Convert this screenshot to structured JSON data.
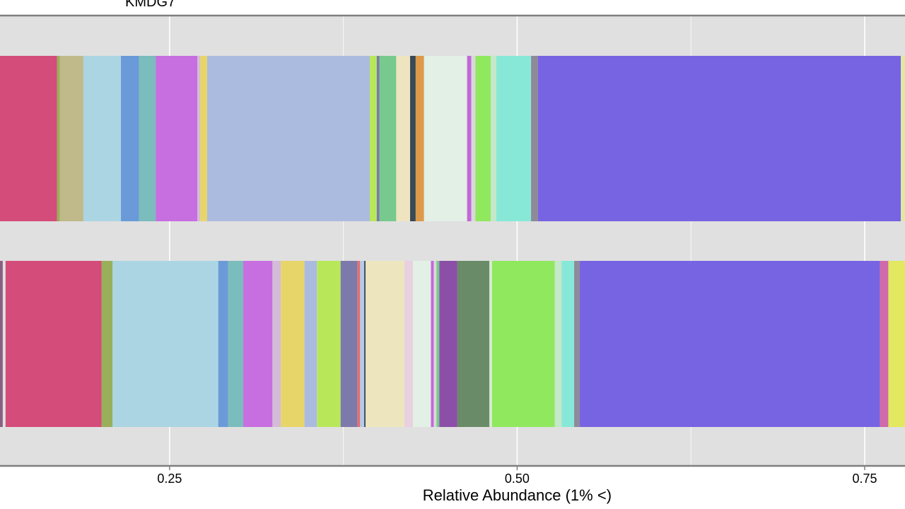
{
  "chart_data": {
    "type": "bar",
    "orientation": "horizontal",
    "stacked": true,
    "facet_label": "KMDG7",
    "xlabel": "Relative Abundance (1% <)",
    "ylabel": "",
    "x_ticks": [
      0.25,
      0.5,
      0.75
    ],
    "x_tick_labels": [
      "0.25",
      "0.50",
      "0.75"
    ],
    "xlim": [
      0.128,
      0.779
    ],
    "grid": true,
    "bars": [
      {
        "segments": [
          {
            "start": 0.125,
            "end": 0.169,
            "color": "#D44C7A"
          },
          {
            "start": 0.169,
            "end": 0.171,
            "color": "#9AAF5A"
          },
          {
            "start": 0.171,
            "end": 0.188,
            "color": "#C0BA8A"
          },
          {
            "start": 0.188,
            "end": 0.215,
            "color": "#ABD5E3"
          },
          {
            "start": 0.215,
            "end": 0.228,
            "color": "#6A9BD8"
          },
          {
            "start": 0.228,
            "end": 0.24,
            "color": "#7BBCBC"
          },
          {
            "start": 0.24,
            "end": 0.27,
            "color": "#C76EE0"
          },
          {
            "start": 0.27,
            "end": 0.272,
            "color": "#D4BCD8"
          },
          {
            "start": 0.272,
            "end": 0.277,
            "color": "#E8D56A"
          },
          {
            "start": 0.277,
            "end": 0.394,
            "color": "#ABBBE0"
          },
          {
            "start": 0.394,
            "end": 0.399,
            "color": "#B8E85A"
          },
          {
            "start": 0.399,
            "end": 0.401,
            "color": "#7B7AAA"
          },
          {
            "start": 0.401,
            "end": 0.413,
            "color": "#78C98D"
          },
          {
            "start": 0.413,
            "end": 0.423,
            "color": "#EEE5C0"
          },
          {
            "start": 0.423,
            "end": 0.427,
            "color": "#3A4A55"
          },
          {
            "start": 0.427,
            "end": 0.433,
            "color": "#DD9A4A"
          },
          {
            "start": 0.433,
            "end": 0.464,
            "color": "#E2F0E6"
          },
          {
            "start": 0.464,
            "end": 0.467,
            "color": "#C368D8"
          },
          {
            "start": 0.467,
            "end": 0.47,
            "color": "#D8D8D8"
          },
          {
            "start": 0.47,
            "end": 0.481,
            "color": "#90E85F"
          },
          {
            "start": 0.481,
            "end": 0.485,
            "color": "#C5E8C8"
          },
          {
            "start": 0.485,
            "end": 0.51,
            "color": "#88E8D8"
          },
          {
            "start": 0.51,
            "end": 0.515,
            "color": "#8E8A9A"
          },
          {
            "start": 0.515,
            "end": 0.776,
            "color": "#7764E2"
          },
          {
            "start": 0.776,
            "end": 0.78,
            "color": "#E2E8A0"
          }
        ]
      },
      {
        "segments": [
          {
            "start": 0.125,
            "end": 0.13,
            "color": "#8A6080"
          },
          {
            "start": 0.13,
            "end": 0.132,
            "color": "#E0E0E0"
          },
          {
            "start": 0.132,
            "end": 0.201,
            "color": "#D44C7A"
          },
          {
            "start": 0.201,
            "end": 0.209,
            "color": "#9AAF5A"
          },
          {
            "start": 0.209,
            "end": 0.285,
            "color": "#ABD5E3"
          },
          {
            "start": 0.285,
            "end": 0.292,
            "color": "#6A9BD8"
          },
          {
            "start": 0.292,
            "end": 0.303,
            "color": "#7BBCBC"
          },
          {
            "start": 0.303,
            "end": 0.324,
            "color": "#C76EE0"
          },
          {
            "start": 0.324,
            "end": 0.33,
            "color": "#D4BCD8"
          },
          {
            "start": 0.33,
            "end": 0.347,
            "color": "#E8D56A"
          },
          {
            "start": 0.347,
            "end": 0.356,
            "color": "#ABBBE0"
          },
          {
            "start": 0.356,
            "end": 0.373,
            "color": "#B8E85A"
          },
          {
            "start": 0.373,
            "end": 0.385,
            "color": "#7B7AAA"
          },
          {
            "start": 0.385,
            "end": 0.387,
            "color": "#E07070"
          },
          {
            "start": 0.387,
            "end": 0.39,
            "color": "#B8C8E8"
          },
          {
            "start": 0.39,
            "end": 0.391,
            "color": "#3A4A55"
          },
          {
            "start": 0.391,
            "end": 0.419,
            "color": "#EDE5BE"
          },
          {
            "start": 0.419,
            "end": 0.425,
            "color": "#E8D0E0"
          },
          {
            "start": 0.425,
            "end": 0.438,
            "color": "#E2F0E6"
          },
          {
            "start": 0.438,
            "end": 0.44,
            "color": "#C368D8"
          },
          {
            "start": 0.44,
            "end": 0.442,
            "color": "#D8D8D8"
          },
          {
            "start": 0.442,
            "end": 0.444,
            "color": "#78C98D"
          },
          {
            "start": 0.444,
            "end": 0.457,
            "color": "#8C4FA8"
          },
          {
            "start": 0.457,
            "end": 0.48,
            "color": "#6A8B68"
          },
          {
            "start": 0.48,
            "end": 0.482,
            "color": "#D8E8D0"
          },
          {
            "start": 0.482,
            "end": 0.527,
            "color": "#90E85F"
          },
          {
            "start": 0.527,
            "end": 0.532,
            "color": "#C5E8C8"
          },
          {
            "start": 0.532,
            "end": 0.541,
            "color": "#88E8D8"
          },
          {
            "start": 0.541,
            "end": 0.545,
            "color": "#8E8A9A"
          },
          {
            "start": 0.545,
            "end": 0.761,
            "color": "#7764E2"
          },
          {
            "start": 0.761,
            "end": 0.767,
            "color": "#D06AAA"
          },
          {
            "start": 0.767,
            "end": 0.78,
            "color": "#E2E860"
          }
        ]
      }
    ]
  }
}
